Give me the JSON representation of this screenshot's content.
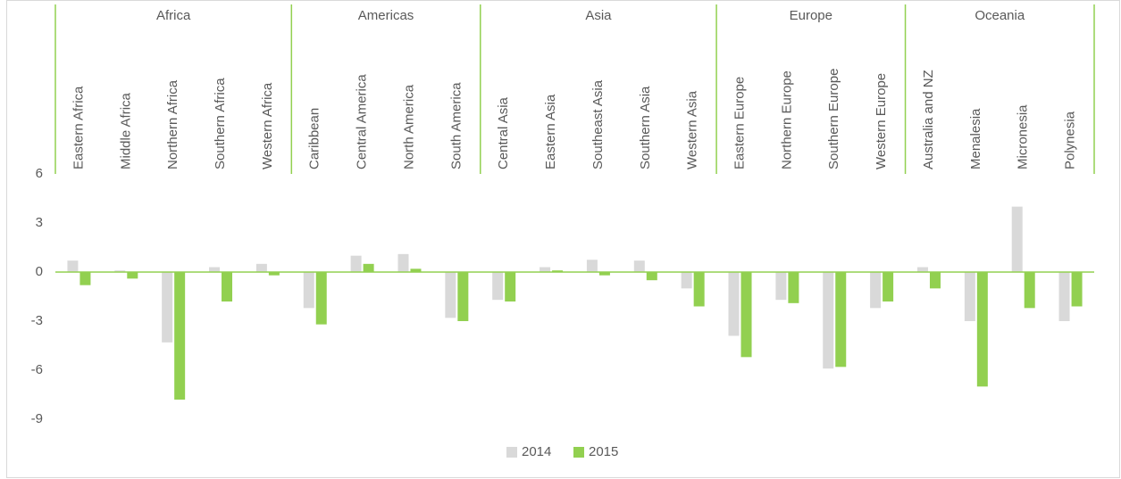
{
  "chart_data": {
    "type": "bar",
    "groups": [
      {
        "name": "Africa",
        "categories": [
          "Eastern Africa",
          "Middle Africa",
          "Northern Africa",
          "Southern Africa",
          "Western Africa"
        ]
      },
      {
        "name": "Americas",
        "categories": [
          "Caribbean",
          "Central America",
          "North America",
          "South America"
        ]
      },
      {
        "name": "Asia",
        "categories": [
          "Central Asia",
          "Eastern Asia",
          "Southeast Asia",
          "Southern Asia",
          "Western Asia"
        ]
      },
      {
        "name": "Europe",
        "categories": [
          "Eastern Europe",
          "Northern Europe",
          "Southern Europe",
          "Western Europe"
        ]
      },
      {
        "name": "Oceania",
        "categories": [
          "Australia and NZ",
          "Menalesia",
          "Micronesia",
          "Polynesia"
        ]
      }
    ],
    "series": [
      {
        "name": "2014",
        "color": "#d9d9d9",
        "values": [
          0.7,
          0.1,
          -4.3,
          0.3,
          0.5,
          -2.2,
          1.0,
          1.1,
          -2.8,
          -1.7,
          0.3,
          0.75,
          0.7,
          -1.0,
          -3.9,
          -1.7,
          -5.9,
          -2.2,
          0.3,
          -3.0,
          4.0,
          -3.0
        ]
      },
      {
        "name": "2015",
        "color": "#92d050",
        "values": [
          -0.8,
          -0.4,
          -7.8,
          -1.8,
          -0.2,
          -3.2,
          0.5,
          0.2,
          -3.0,
          -1.8,
          0.1,
          -0.2,
          -0.5,
          -2.1,
          -5.2,
          -1.9,
          -5.8,
          -1.8,
          -1.0,
          -7.0,
          -2.2,
          -2.1
        ]
      }
    ],
    "ylim": [
      -9,
      6
    ],
    "yticks": [
      -9,
      -6,
      -3,
      0,
      3,
      6
    ],
    "legend": "bottom"
  }
}
